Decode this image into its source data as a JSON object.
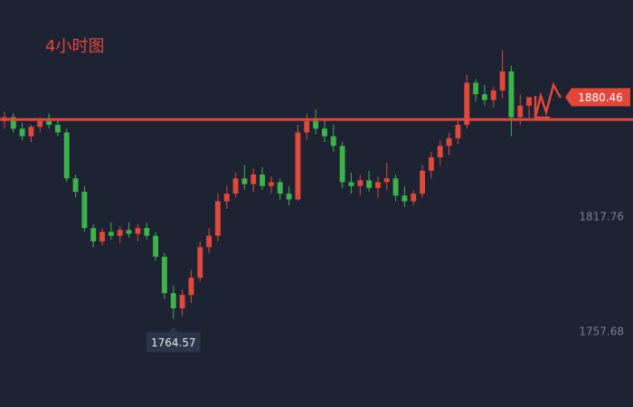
{
  "chart_data": {
    "type": "candlestick",
    "title": "4小时图",
    "open": [
      1868,
      1870,
      1864,
      1860,
      1865,
      1868,
      1866,
      1862,
      1838,
      1831,
      1812,
      1805,
      1810,
      1808,
      1811,
      1809,
      1812,
      1808,
      1797,
      1778,
      1770,
      1777,
      1786,
      1802,
      1808,
      1826,
      1830,
      1838,
      1835,
      1840,
      1834,
      1836,
      1830,
      1827,
      1862,
      1868,
      1864,
      1860,
      1855,
      1836,
      1834,
      1837,
      1833,
      1836,
      1838,
      1829,
      1826,
      1830,
      1842,
      1849,
      1855,
      1859,
      1866,
      1888,
      1882,
      1879,
      1884,
      1894,
      1870,
      1876
    ],
    "high": [
      1873,
      1872,
      1867,
      1866,
      1870,
      1872,
      1869,
      1864,
      1840,
      1834,
      1814,
      1812,
      1815,
      1813,
      1815,
      1814,
      1815,
      1810,
      1799,
      1782,
      1780,
      1790,
      1805,
      1812,
      1830,
      1834,
      1841,
      1845,
      1843,
      1844,
      1839,
      1838,
      1834,
      1866,
      1872,
      1874,
      1868,
      1866,
      1857,
      1841,
      1840,
      1842,
      1839,
      1846,
      1840,
      1834,
      1832,
      1845,
      1852,
      1858,
      1862,
      1868,
      1892,
      1890,
      1887,
      1886,
      1905,
      1897,
      1882,
      1880
    ],
    "low": [
      1864,
      1862,
      1858,
      1857,
      1862,
      1864,
      1860,
      1836,
      1828,
      1810,
      1802,
      1803,
      1806,
      1804,
      1807,
      1805,
      1806,
      1795,
      1775,
      1764.57,
      1766,
      1773,
      1784,
      1799,
      1805,
      1822,
      1828,
      1832,
      1831,
      1832,
      1830,
      1827,
      1824,
      1826,
      1858,
      1861,
      1857,
      1852,
      1833,
      1830,
      1829,
      1831,
      1828,
      1832,
      1826,
      1823,
      1824,
      1828,
      1838,
      1845,
      1850,
      1856,
      1864,
      1878,
      1876,
      1875,
      1880,
      1860,
      1866,
      1868
    ],
    "close": [
      1870,
      1864,
      1860,
      1865,
      1868,
      1866,
      1862,
      1838,
      1831,
      1812,
      1805,
      1810,
      1808,
      1811,
      1809,
      1812,
      1808,
      1797,
      1778,
      1770,
      1777,
      1786,
      1802,
      1808,
      1826,
      1830,
      1838,
      1835,
      1840,
      1834,
      1836,
      1830,
      1827,
      1862,
      1868,
      1864,
      1860,
      1855,
      1836,
      1834,
      1837,
      1833,
      1836,
      1838,
      1829,
      1826,
      1830,
      1842,
      1849,
      1855,
      1859,
      1866,
      1888,
      1882,
      1879,
      1884,
      1894,
      1870,
      1876,
      1880.46
    ],
    "up_color": "#e0483a",
    "down_color": "#3db34a",
    "reference_line": {
      "value": 1868.8,
      "color": "#e0483a"
    },
    "ylim": [
      1718.4,
      1931.3
    ],
    "yticks": [
      1757.68,
      1817.76
    ]
  }
}
